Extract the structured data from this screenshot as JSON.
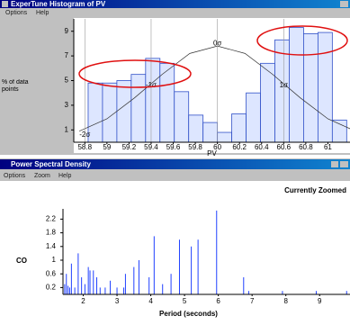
{
  "windows": [
    {
      "title": "ExperTune Histogram of PV",
      "menu": [
        "Options",
        "Help"
      ]
    },
    {
      "title": "Power Spectral Density",
      "menu": [
        "Options",
        "Zoom",
        "Help"
      ],
      "status": "Currently Zoomed"
    }
  ],
  "chart_data": [
    {
      "type": "histogram",
      "ylabel": "% of data points",
      "xlabel": "PV",
      "bins": [
        58.83,
        58.96,
        59.09,
        59.22,
        59.35,
        59.48,
        59.61,
        59.74,
        59.87,
        60.0,
        60.13,
        60.26,
        60.39,
        60.52,
        60.65,
        60.78,
        60.91,
        61.04,
        61.17
      ],
      "values": [
        4.8,
        4.8,
        5.0,
        5.5,
        6.8,
        6.4,
        4.1,
        2.2,
        1.6,
        0.8,
        2.3,
        4.0,
        6.4,
        8.3,
        9.3,
        8.8,
        8.9,
        1.8
      ],
      "color": "#dde6ff",
      "edge_color": "#3050c8",
      "curve": {
        "x": [
          58.75,
          59.0,
          59.25,
          59.5,
          59.75,
          60.0,
          60.25,
          60.5,
          60.75,
          61.0,
          61.25
        ],
        "values": [
          0.9,
          1.9,
          3.6,
          5.5,
          7.2,
          7.8,
          7.2,
          5.5,
          3.6,
          1.9,
          0.9
        ],
        "color": "#333333"
      },
      "annotations": [
        {
          "text": "-2σ",
          "x": 58.8,
          "y": 0.6
        },
        {
          "text": "-1σ",
          "x": 59.4,
          "y": 4.6
        },
        {
          "text": "0σ",
          "x": 60.0,
          "y": 8.0
        },
        {
          "text": "1σ",
          "x": 60.6,
          "y": 4.6
        }
      ],
      "xlim": [
        58.7,
        61.2
      ],
      "ylim": [
        0,
        10
      ],
      "xticks": [
        58.8,
        59,
        59.2,
        59.4,
        59.6,
        59.8,
        60,
        60.2,
        60.4,
        60.6,
        60.8,
        61
      ],
      "yticks": [
        1,
        3,
        5,
        7,
        9
      ]
    },
    {
      "type": "stem",
      "ylabel": "CO",
      "xlabel": "Period (seconds)",
      "color": "#2040ff",
      "x": [
        1.45,
        1.5,
        1.55,
        1.6,
        1.65,
        1.75,
        1.85,
        1.95,
        2.05,
        2.15,
        2.2,
        2.3,
        2.4,
        2.5,
        2.65,
        2.8,
        3.0,
        3.2,
        3.25,
        3.5,
        3.65,
        3.95,
        4.1,
        4.35,
        4.6,
        4.85,
        5.2,
        5.4,
        5.95,
        6.75,
        6.9,
        7.9,
        8.9,
        9.8
      ],
      "values": [
        0.3,
        0.6,
        0.25,
        0.2,
        0.9,
        0.2,
        1.2,
        0.5,
        0.3,
        0.8,
        0.7,
        0.7,
        0.5,
        0.2,
        0.2,
        0.4,
        0.2,
        0.2,
        0.6,
        0.8,
        1.0,
        0.5,
        1.7,
        0.3,
        0.6,
        1.6,
        1.4,
        1.6,
        2.45,
        0.5,
        0.1,
        0.1,
        0.1,
        0.1
      ],
      "xlim": [
        1.4,
        9.9
      ],
      "ylim": [
        0,
        2.5
      ],
      "xticks": [
        2,
        3,
        4,
        5,
        6,
        7,
        8,
        9
      ],
      "yticks": [
        0.2,
        0.6,
        1,
        1.4,
        1.8,
        2.2
      ]
    }
  ]
}
